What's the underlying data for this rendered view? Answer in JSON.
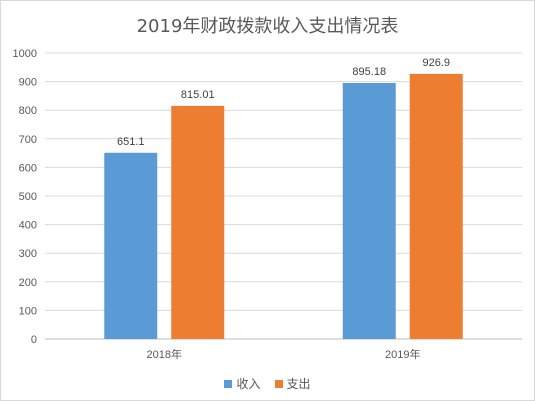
{
  "chart_data": {
    "type": "bar",
    "title": "2019年财政拨款收入支出情况表",
    "categories": [
      "2018年",
      "2019年"
    ],
    "series": [
      {
        "name": "收入",
        "values": [
          651.1,
          895.18
        ],
        "labels": [
          "651.1",
          "895.18"
        ],
        "color": "#5b9bd5"
      },
      {
        "name": "支出",
        "values": [
          815.01,
          926.9
        ],
        "labels": [
          "815.01",
          "926.9"
        ],
        "color": "#ed7d31"
      }
    ],
    "ylim": [
      0,
      1000
    ],
    "yticks": [
      "0",
      "100",
      "200",
      "300",
      "400",
      "500",
      "600",
      "700",
      "800",
      "900",
      "1000"
    ],
    "grid": true,
    "legend_position": "bottom"
  }
}
